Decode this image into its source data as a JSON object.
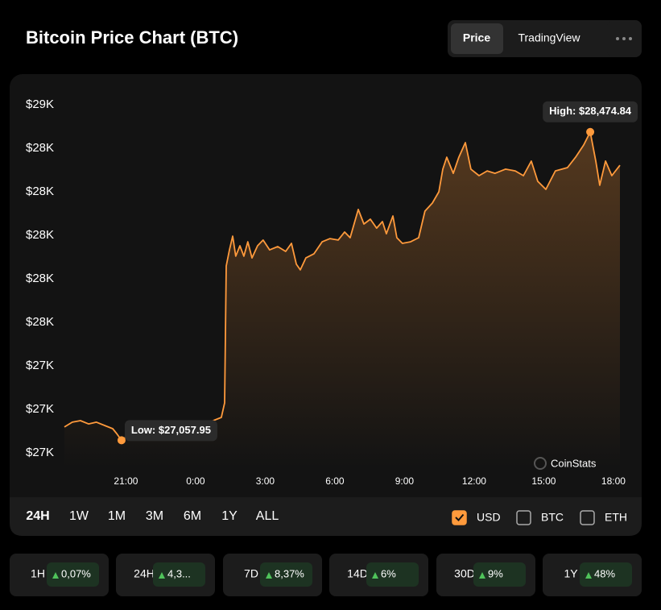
{
  "header": {
    "title": "Bitcoin Price Chart (BTC)",
    "tabs": [
      {
        "label": "Price",
        "active": true
      },
      {
        "label": "TradingView",
        "active": false
      }
    ]
  },
  "chart_data": {
    "type": "line",
    "color": "#ff9a3c",
    "x": [
      -5.65,
      -5.31,
      -4.96,
      -4.61,
      -4.27,
      -3.92,
      -3.57,
      -3.4,
      -3.19,
      -2.88,
      -2.36,
      -1.84,
      -1.32,
      -0.8,
      -0.28,
      0.42,
      0.76,
      1.11,
      1.25,
      1.32,
      1.46,
      1.6,
      1.73,
      1.91,
      2.08,
      2.25,
      2.43,
      2.67,
      2.91,
      3.19,
      3.54,
      3.88,
      4.13,
      4.34,
      4.51,
      4.75,
      5.1,
      5.45,
      5.79,
      6.14,
      6.42,
      6.66,
      7.01,
      7.25,
      7.53,
      7.8,
      8.05,
      8.22,
      8.5,
      8.67,
      8.91,
      9.26,
      9.61,
      9.88,
      10.2,
      10.48,
      10.65,
      10.82,
      11.1,
      11.34,
      11.62,
      11.86,
      12.21,
      12.56,
      12.9,
      13.35,
      13.77,
      14.12,
      14.46,
      14.74,
      15.09,
      15.5,
      16.02,
      16.37,
      16.72,
      17.0,
      17.24,
      17.41,
      17.66,
      17.93,
      18.28
    ],
    "values": [
      27119,
      27141,
      27148,
      27133,
      27141,
      27126,
      27111,
      27089,
      27057.95,
      27081,
      27070,
      27081,
      27085,
      27089,
      27100,
      27119,
      27148,
      27163,
      27230,
      27859,
      27933,
      27996,
      27904,
      27952,
      27904,
      27970,
      27896,
      27952,
      27978,
      27933,
      27948,
      27926,
      27963,
      27867,
      27841,
      27896,
      27915,
      27970,
      27985,
      27978,
      28015,
      27989,
      28119,
      28052,
      28074,
      28033,
      28063,
      28007,
      28089,
      27989,
      27963,
      27970,
      27989,
      28111,
      28148,
      28200,
      28304,
      28359,
      28285,
      28359,
      28426,
      28304,
      28274,
      28296,
      28285,
      28304,
      28296,
      28274,
      28341,
      28248,
      28211,
      28296,
      28311,
      28359,
      28415,
      28474.84,
      28341,
      28230,
      28341,
      28274,
      28322
    ],
    "xlim": [
      -5.65,
      18.28
    ],
    "xticks": [
      {
        "value": -3,
        "label": "21:00"
      },
      {
        "value": 0,
        "label": "0:00"
      },
      {
        "value": 3,
        "label": "3:00"
      },
      {
        "value": 6,
        "label": "6:00"
      },
      {
        "value": 9,
        "label": "9:00"
      },
      {
        "value": 12,
        "label": "12:00"
      },
      {
        "value": 15,
        "label": "15:00"
      },
      {
        "value": 18,
        "label": "18:00"
      }
    ],
    "ylim": [
      27000,
      28600
    ],
    "yticks": [
      {
        "value": 27000,
        "label": "$27K"
      },
      {
        "value": 27200,
        "label": "$27K"
      },
      {
        "value": 27400,
        "label": "$27K"
      },
      {
        "value": 27600,
        "label": "$28K"
      },
      {
        "value": 27800,
        "label": "$28K"
      },
      {
        "value": 28000,
        "label": "$28K"
      },
      {
        "value": 28200,
        "label": "$28K"
      },
      {
        "value": 28400,
        "label": "$28K"
      },
      {
        "value": 28600,
        "label": "$29K"
      }
    ],
    "grid": false,
    "high_label": "High: $28,474.84",
    "low_label": "Low: $27,057.95",
    "watermark": "CoinStats"
  },
  "ranges": [
    {
      "label": "24H",
      "active": true
    },
    {
      "label": "1W",
      "active": false
    },
    {
      "label": "1M",
      "active": false
    },
    {
      "label": "3M",
      "active": false
    },
    {
      "label": "6M",
      "active": false
    },
    {
      "label": "1Y",
      "active": false
    },
    {
      "label": "ALL",
      "active": false
    }
  ],
  "currencies": [
    {
      "label": "USD",
      "checked": true
    },
    {
      "label": "BTC",
      "checked": false
    },
    {
      "label": "ETH",
      "checked": false
    }
  ],
  "stats": [
    {
      "period": "1H",
      "change": "0,07%"
    },
    {
      "period": "24H",
      "change": "4,3..."
    },
    {
      "period": "7D",
      "change": "8,37%"
    },
    {
      "period": "14D",
      "change": "6%"
    },
    {
      "period": "30D",
      "change": "9%"
    },
    {
      "period": "1Y",
      "change": "48%"
    }
  ]
}
